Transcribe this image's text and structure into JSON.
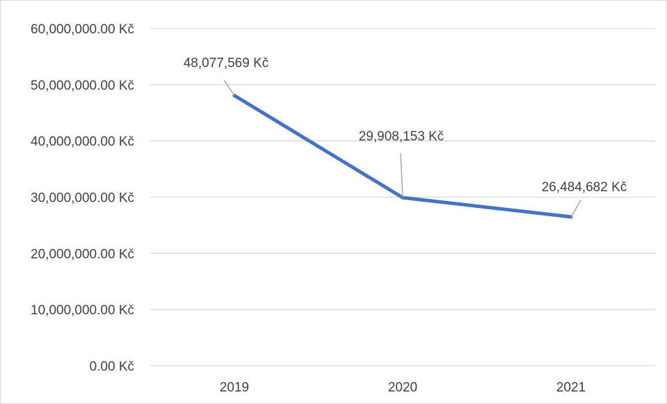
{
  "chart_data": {
    "type": "line",
    "title": "",
    "xlabel": "",
    "ylabel": "",
    "categories": [
      "2019",
      "2020",
      "2021"
    ],
    "y_tick_labels": [
      "0.00 Kč",
      "10,000,000.00 Kč",
      "20,000,000.00 Kč",
      "30,000,000.00 Kč",
      "40,000,000.00 Kč",
      "50,000,000.00 Kč",
      "60,000,000.00 Kč"
    ],
    "y_ticks": [
      0,
      10000000,
      20000000,
      30000000,
      40000000,
      50000000,
      60000000
    ],
    "ylim": [
      0,
      60000000
    ],
    "grid": "horizontal",
    "legend": "none",
    "series": [
      {
        "values": [
          48077569,
          29908153,
          26484682
        ],
        "data_labels": [
          "48,077,569 Kč",
          "29,908,153 Kč",
          "26,484,682 Kč"
        ],
        "color": "#4472C4"
      }
    ],
    "colors": {
      "gridline": "#d9d9d9",
      "leader_line": "#a6a6a6",
      "text": "#404040"
    }
  }
}
